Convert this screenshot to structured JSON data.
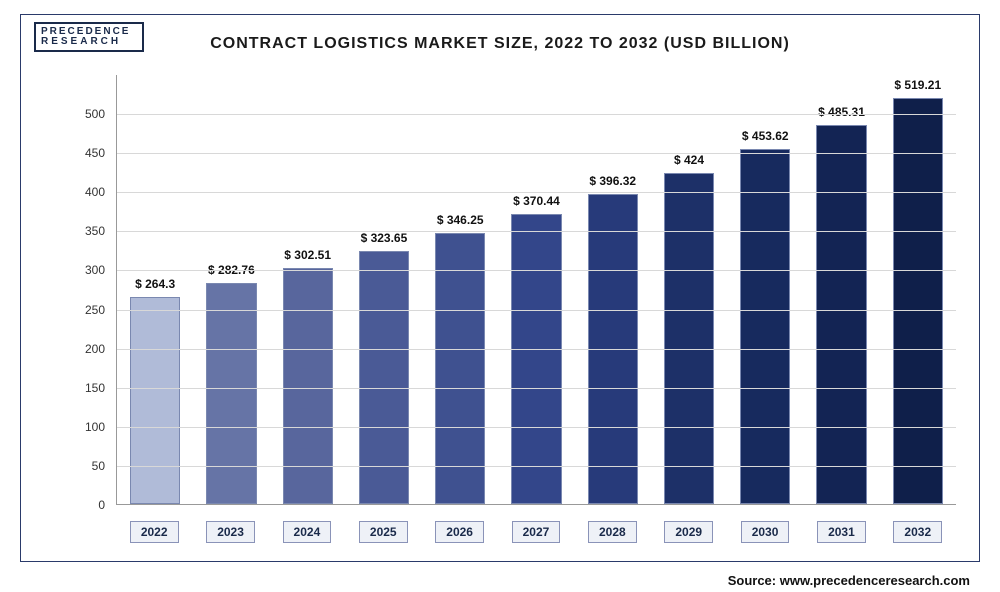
{
  "logo": {
    "line1": "PRECEDENCE",
    "line2": "RESEARCH"
  },
  "chart": {
    "type": "bar",
    "title": "CONTRACT LOGISTICS MARKET SIZE, 2022 TO 2032 (USD BILLION)",
    "title_fontsize": 16,
    "categories": [
      "2022",
      "2023",
      "2024",
      "2025",
      "2026",
      "2027",
      "2028",
      "2029",
      "2030",
      "2031",
      "2032"
    ],
    "values": [
      264.3,
      282.76,
      302.51,
      323.65,
      346.25,
      370.44,
      396.32,
      424,
      453.62,
      485.31,
      519.21
    ],
    "value_labels": [
      "$ 264.3",
      "$ 282.76",
      "$ 302.51",
      "$ 323.65",
      "$ 346.25",
      "$ 370.44",
      "$ 396.32",
      "$ 424",
      "$ 453.62",
      "$ 485.31",
      "$ 519.21"
    ],
    "bar_colors": [
      "#b0bbd8",
      "#6674a6",
      "#58669d",
      "#4a5a96",
      "#3f5190",
      "#33468a",
      "#273a7a",
      "#1d3068",
      "#172a5e",
      "#132454",
      "#0f1f4a"
    ],
    "bar_border": "#7a88b0",
    "bar_width": 0.66,
    "ylim": [
      0,
      550
    ],
    "ytick_step": 50,
    "yticks": [
      0,
      50,
      100,
      150,
      200,
      250,
      300,
      350,
      400,
      450,
      500
    ],
    "grid_color": "#d8d8d8",
    "axis_color": "#999999",
    "background_color": "#ffffff",
    "frame_color": "#2a3a6a",
    "label_fontsize": 12,
    "xlabel_bg": "#eef1f7",
    "xlabel_border": "#8a93b8"
  },
  "source": "Source: www.precedenceresearch.com"
}
